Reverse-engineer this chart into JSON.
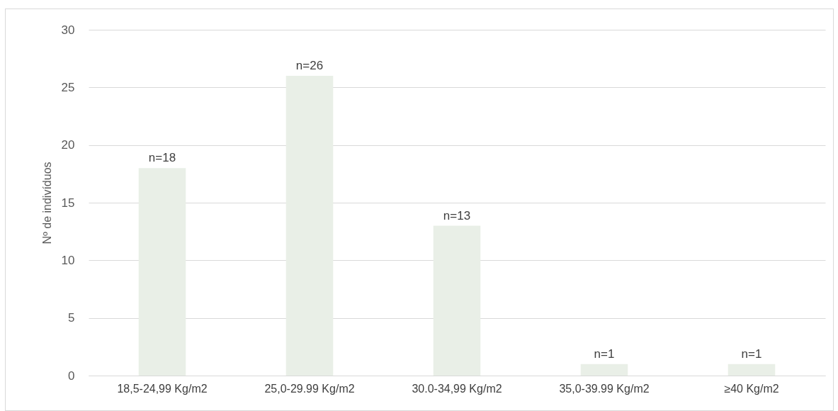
{
  "chart_data": {
    "type": "bar",
    "ylabel": "Nº de indivíduos",
    "categories": [
      "18,5-24,99 Kg/m2",
      "25,0-29.99 Kg/m2",
      "30.0-34,99 Kg/m2",
      "35,0-39.99 Kg/m2",
      "≥40 Kg/m2"
    ],
    "values": [
      18,
      26,
      13,
      1,
      1
    ],
    "value_labels": [
      "n=18",
      "n=26",
      "n=13",
      "n=1",
      "n=1"
    ],
    "color": "#e9efe7",
    "ylim": [
      0,
      30
    ],
    "yticks": [
      0,
      5,
      10,
      15,
      20,
      25,
      30
    ],
    "grid": "y"
  }
}
